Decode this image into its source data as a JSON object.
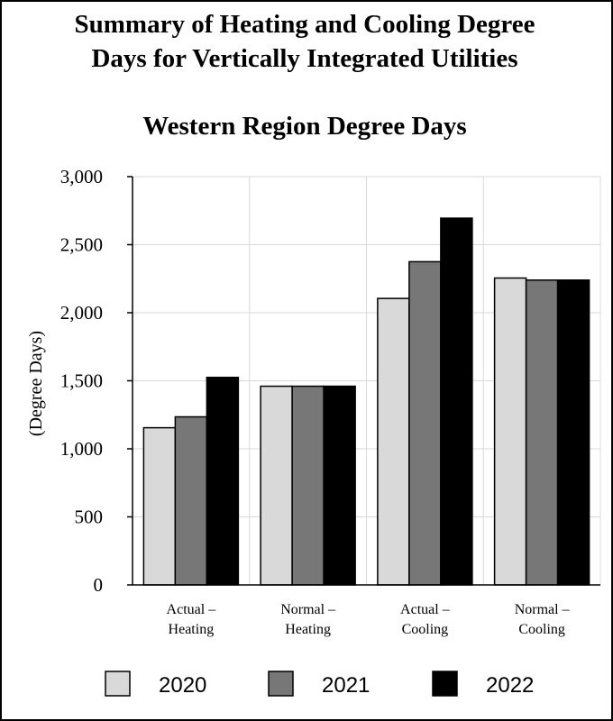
{
  "chart_data": {
    "type": "bar",
    "title": [
      "Summary of Heating and Cooling Degree",
      "Days for Vertically Integrated Utilities"
    ],
    "subtitle": "Western Region Degree Days",
    "ylabel": "(Degree Days)",
    "xlabel": "",
    "ylim": [
      0,
      3000
    ],
    "yticks": [
      0,
      500,
      1000,
      1500,
      2000,
      2500,
      3000
    ],
    "ytick_labels": [
      "0",
      "500",
      "1,000",
      "1,500",
      "2,000",
      "2,500",
      "3,000"
    ],
    "grid": true,
    "legend_position": "bottom",
    "categories": [
      [
        "Actual –",
        "Heating"
      ],
      [
        "Normal –",
        "Heating"
      ],
      [
        "Actual –",
        "Cooling"
      ],
      [
        "Normal –",
        "Cooling"
      ]
    ],
    "series": [
      {
        "name": "2020",
        "color": "#d9d9d9",
        "values": [
          1155,
          1460,
          2105,
          2255
        ]
      },
      {
        "name": "2021",
        "color": "#777777",
        "values": [
          1235,
          1460,
          2375,
          2240
        ]
      },
      {
        "name": "2022",
        "color": "#000000",
        "values": [
          1525,
          1460,
          2695,
          2240
        ]
      }
    ]
  }
}
